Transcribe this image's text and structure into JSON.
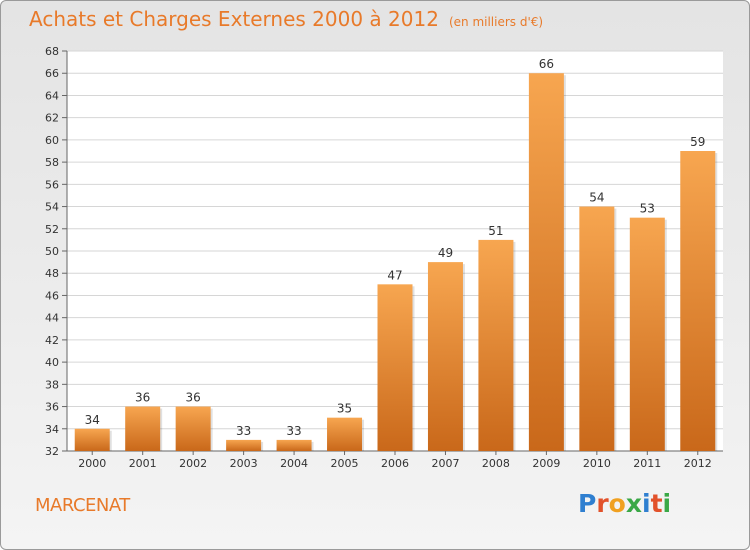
{
  "header": {
    "title": "Achats et Charges Externes 2000 à 2012",
    "unit": "(en milliers d'€)"
  },
  "footer": {
    "city": "MARCENAT",
    "logo_letters": [
      "P",
      "r",
      "o",
      "x",
      "i",
      "t",
      "i"
    ],
    "logo_colors": [
      "#2f7fd0",
      "#e2522b",
      "#f0a020",
      "#3aa846",
      "#2f7fd0",
      "#e2522b",
      "#3aa846"
    ]
  },
  "colors": {
    "bar_top": "#f7a650",
    "bar_bottom": "#c9681a",
    "accent": "#e87a2a"
  },
  "chart_data": {
    "type": "bar",
    "title": "Achats et Charges Externes 2000 à 2012",
    "categories": [
      "2000",
      "2001",
      "2002",
      "2003",
      "2004",
      "2005",
      "2006",
      "2007",
      "2008",
      "2009",
      "2010",
      "2011",
      "2012"
    ],
    "values": [
      34,
      36,
      36,
      33,
      33,
      35,
      47,
      49,
      51,
      66,
      54,
      53,
      59
    ],
    "ylim": [
      32,
      68
    ],
    "yticks": [
      32,
      34,
      36,
      38,
      40,
      42,
      44,
      46,
      48,
      50,
      52,
      54,
      56,
      58,
      60,
      62,
      64,
      66,
      68
    ],
    "grid": true,
    "legend": "none"
  }
}
